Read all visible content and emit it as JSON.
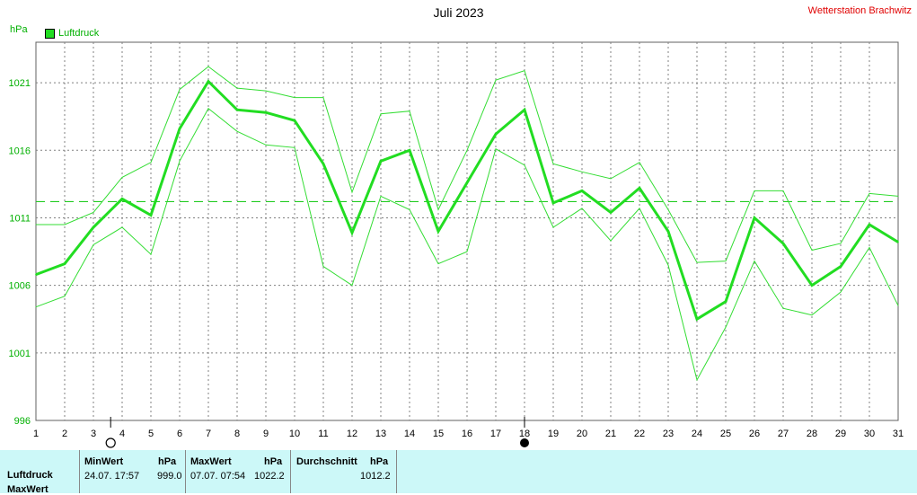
{
  "title": "Juli 2023",
  "station": "Wetterstation Brachwitz",
  "unit": "hPa",
  "legend": "Luftdruck",
  "colors": {
    "main": "#22dd22",
    "thin": "#33dd33",
    "grid": "#808080",
    "avg": "#22cc22",
    "station": "#e00000",
    "table_bg": "#ccf8f8"
  },
  "chart_data": {
    "type": "line",
    "title": "Juli 2023",
    "ylabel": "hPa",
    "x": [
      1,
      2,
      3,
      4,
      5,
      6,
      7,
      8,
      9,
      10,
      11,
      12,
      13,
      14,
      15,
      16,
      17,
      18,
      19,
      20,
      21,
      22,
      23,
      24,
      25,
      26,
      27,
      28,
      29,
      30,
      31
    ],
    "ylim": [
      996,
      1021
    ],
    "y_ticks": [
      996,
      1001,
      1006,
      1011,
      1016,
      1021
    ],
    "x_ticks": [
      1,
      2,
      3,
      4,
      5,
      6,
      7,
      8,
      9,
      10,
      11,
      12,
      13,
      14,
      15,
      16,
      17,
      18,
      19,
      20,
      21,
      22,
      23,
      24,
      25,
      26,
      27,
      28,
      29,
      30,
      31
    ],
    "grid": true,
    "legend_position": "top-left",
    "average": 1012.2,
    "series": [
      {
        "name": "Luftdruck",
        "role": "mean",
        "values": [
          1006.8,
          1007.6,
          1010.3,
          1012.4,
          1011.2,
          1017.6,
          1021.1,
          1019.0,
          1018.8,
          1018.2,
          1015.0,
          1009.9,
          1015.2,
          1016.0,
          1010.0,
          1013.6,
          1017.2,
          1019.0,
          1012.1,
          1013.0,
          1011.4,
          1013.2,
          1010.0,
          1003.5,
          1004.8,
          1011.0,
          1009.1,
          1006.0,
          1007.4,
          1010.5,
          1009.2
        ]
      },
      {
        "role": "max",
        "values": [
          1010.5,
          1010.5,
          1011.4,
          1014.0,
          1015.1,
          1020.5,
          1022.2,
          1020.6,
          1020.4,
          1019.9,
          1019.9,
          1012.9,
          1018.7,
          1018.9,
          1011.6,
          1016.0,
          1021.2,
          1021.9,
          1015.0,
          1014.4,
          1013.9,
          1015.1,
          1011.6,
          1007.7,
          1007.8,
          1013.0,
          1013.0,
          1008.6,
          1009.1,
          1012.8,
          1012.6
        ]
      },
      {
        "role": "min",
        "values": [
          1004.4,
          1005.2,
          1009.0,
          1010.3,
          1008.3,
          1015.2,
          1019.1,
          1017.4,
          1016.4,
          1016.2,
          1007.4,
          1006.0,
          1012.6,
          1011.6,
          1007.6,
          1008.5,
          1016.1,
          1014.9,
          1010.3,
          1011.7,
          1009.3,
          1011.7,
          1007.5,
          999.0,
          1002.9,
          1007.8,
          1004.3,
          1003.8,
          1005.5,
          1008.8,
          1004.5
        ]
      }
    ],
    "markers": [
      {
        "day": 3.6,
        "kind": "new-moon"
      },
      {
        "day": 18.0,
        "kind": "full-moon"
      }
    ]
  },
  "stats": {
    "row_label": "Luftdruck",
    "row_label_2": "MaxWert",
    "min": {
      "header": "MinWert",
      "unit": "hPa",
      "datetime": "24.07.  17:57",
      "value": "999.0"
    },
    "max": {
      "header": "MaxWert",
      "unit": "hPa",
      "datetime": "07.07.  07:54",
      "value": "1022.2"
    },
    "avg": {
      "header": "Durchschnitt",
      "unit": "hPa",
      "value": "1012.2"
    }
  }
}
